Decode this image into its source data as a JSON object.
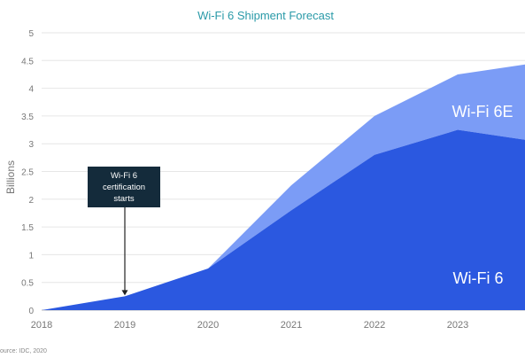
{
  "chart_data": {
    "type": "area",
    "title": "Wi-Fi 6 Shipment Forecast",
    "ylabel": "Billions",
    "xlabel": "",
    "x": [
      2018,
      2019,
      2020,
      2021,
      2022,
      2023,
      2023.9
    ],
    "x_ticks": [
      "2018",
      "2019",
      "2020",
      "2021",
      "2022",
      "2023"
    ],
    "y_ticks": [
      "0",
      "0.5",
      "1",
      "1.5",
      "2",
      "2.5",
      "3",
      "3.5",
      "4",
      "4.5",
      "5"
    ],
    "ylim": [
      0,
      5
    ],
    "grid": "horizontal",
    "stacked": true,
    "series": [
      {
        "name": "Wi-Fi 6",
        "values": [
          0,
          0.25,
          0.75,
          1.8,
          2.8,
          3.25,
          3.05
        ],
        "color": "#2b58e0"
      },
      {
        "name": "Wi-Fi 6E",
        "values": [
          0,
          0,
          0,
          0.45,
          0.7,
          1.0,
          1.4
        ],
        "color": "#7b9cf6"
      }
    ],
    "annotation": {
      "text": [
        "Wi-Fi 6",
        "certification",
        "starts"
      ],
      "x": 2019,
      "y": 0.25
    },
    "source": "ource: IDC, 2020",
    "colors": {
      "title": "#2a9aa8",
      "axis_text": "#777777",
      "grid": "#e6e6e6",
      "annotation_bg": "#142b3b"
    }
  }
}
